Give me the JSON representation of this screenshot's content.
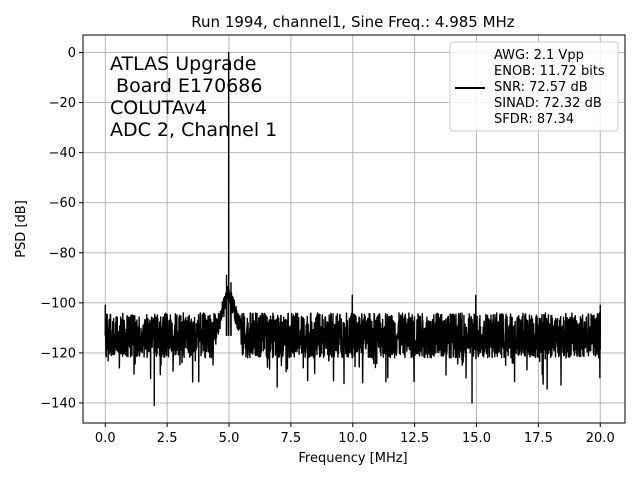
{
  "chart_data": {
    "type": "line",
    "title": "Run 1994, channel1, Sine Freq.: 4.985 MHz",
    "xlabel": "Frequency [MHz]",
    "ylabel": "PSD [dB]",
    "xlim": [
      -0.9,
      21.0
    ],
    "ylim": [
      -148,
      7
    ],
    "xticks": [
      0.0,
      2.5,
      5.0,
      7.5,
      10.0,
      12.5,
      15.0,
      17.5,
      20.0
    ],
    "xtick_labels": [
      "0.0",
      "2.5",
      "5.0",
      "7.5",
      "10.0",
      "12.5",
      "15.0",
      "17.5",
      "20.0"
    ],
    "yticks": [
      0,
      -20,
      -40,
      -60,
      -80,
      -100,
      -120,
      -140
    ],
    "ytick_labels": [
      "0",
      "−20",
      "−40",
      "−60",
      "−80",
      "−100",
      "−120",
      "−140"
    ],
    "grid": true,
    "legend_position": "top-right",
    "annotation_lines": [
      "ATLAS Upgrade",
      " Board E170686",
      "COLUTAv4",
      "ADC 2, Channel 1"
    ],
    "legend_lines": [
      "AWG: 2.1 Vpp",
      "ENOB: 11.72 bits",
      "SNR: 72.57 dB",
      "SINAD: 72.32 dB",
      "SFDR: 87.34"
    ],
    "series_color": "#000000",
    "noise_floor_db": -113,
    "noise_spread_db": 9,
    "spurs": [
      {
        "x": 0.0,
        "y": -101
      },
      {
        "x": 1.98,
        "y": -141
      },
      {
        "x": 4.9,
        "y": -89
      },
      {
        "x": 4.985,
        "y": 0
      },
      {
        "x": 5.08,
        "y": -92
      },
      {
        "x": 9.98,
        "y": -97
      },
      {
        "x": 14.82,
        "y": -140
      },
      {
        "x": 14.97,
        "y": -97
      },
      {
        "x": 20.0,
        "y": -101
      }
    ]
  }
}
